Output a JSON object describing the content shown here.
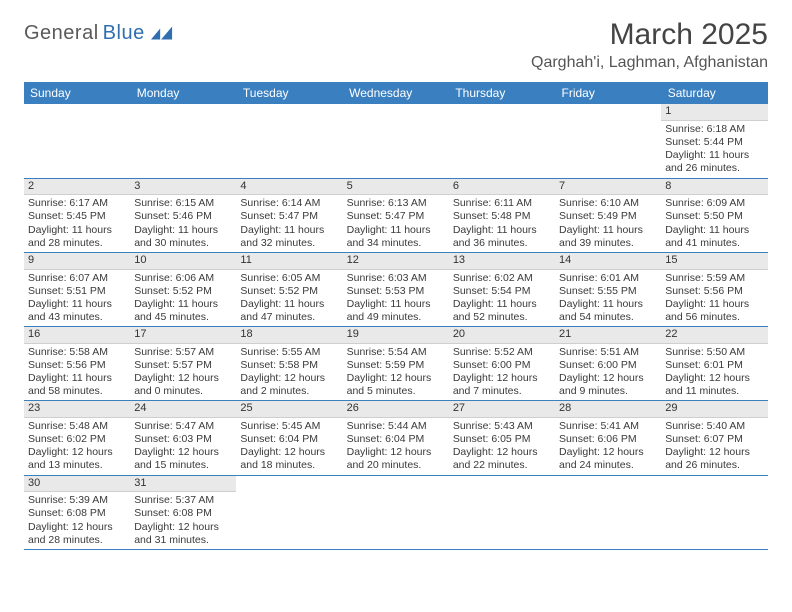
{
  "logo": {
    "text1": "General",
    "text2": "Blue"
  },
  "title": "March 2025",
  "location": "Qarghah'i, Laghman, Afghanistan",
  "colors": {
    "header_bg": "#3a7fc0",
    "header_fg": "#ffffff",
    "daynum_bg": "#e9e9e9",
    "border": "#3a7fc0",
    "logo_blue": "#2f6fb0",
    "logo_gray": "#5a5a5a"
  },
  "weekdays": [
    "Sunday",
    "Monday",
    "Tuesday",
    "Wednesday",
    "Thursday",
    "Friday",
    "Saturday"
  ],
  "weeks": [
    [
      null,
      null,
      null,
      null,
      null,
      null,
      {
        "n": "1",
        "sr": "Sunrise: 6:18 AM",
        "ss": "Sunset: 5:44 PM",
        "dl1": "Daylight: 11 hours",
        "dl2": "and 26 minutes."
      }
    ],
    [
      {
        "n": "2",
        "sr": "Sunrise: 6:17 AM",
        "ss": "Sunset: 5:45 PM",
        "dl1": "Daylight: 11 hours",
        "dl2": "and 28 minutes."
      },
      {
        "n": "3",
        "sr": "Sunrise: 6:15 AM",
        "ss": "Sunset: 5:46 PM",
        "dl1": "Daylight: 11 hours",
        "dl2": "and 30 minutes."
      },
      {
        "n": "4",
        "sr": "Sunrise: 6:14 AM",
        "ss": "Sunset: 5:47 PM",
        "dl1": "Daylight: 11 hours",
        "dl2": "and 32 minutes."
      },
      {
        "n": "5",
        "sr": "Sunrise: 6:13 AM",
        "ss": "Sunset: 5:47 PM",
        "dl1": "Daylight: 11 hours",
        "dl2": "and 34 minutes."
      },
      {
        "n": "6",
        "sr": "Sunrise: 6:11 AM",
        "ss": "Sunset: 5:48 PM",
        "dl1": "Daylight: 11 hours",
        "dl2": "and 36 minutes."
      },
      {
        "n": "7",
        "sr": "Sunrise: 6:10 AM",
        "ss": "Sunset: 5:49 PM",
        "dl1": "Daylight: 11 hours",
        "dl2": "and 39 minutes."
      },
      {
        "n": "8",
        "sr": "Sunrise: 6:09 AM",
        "ss": "Sunset: 5:50 PM",
        "dl1": "Daylight: 11 hours",
        "dl2": "and 41 minutes."
      }
    ],
    [
      {
        "n": "9",
        "sr": "Sunrise: 6:07 AM",
        "ss": "Sunset: 5:51 PM",
        "dl1": "Daylight: 11 hours",
        "dl2": "and 43 minutes."
      },
      {
        "n": "10",
        "sr": "Sunrise: 6:06 AM",
        "ss": "Sunset: 5:52 PM",
        "dl1": "Daylight: 11 hours",
        "dl2": "and 45 minutes."
      },
      {
        "n": "11",
        "sr": "Sunrise: 6:05 AM",
        "ss": "Sunset: 5:52 PM",
        "dl1": "Daylight: 11 hours",
        "dl2": "and 47 minutes."
      },
      {
        "n": "12",
        "sr": "Sunrise: 6:03 AM",
        "ss": "Sunset: 5:53 PM",
        "dl1": "Daylight: 11 hours",
        "dl2": "and 49 minutes."
      },
      {
        "n": "13",
        "sr": "Sunrise: 6:02 AM",
        "ss": "Sunset: 5:54 PM",
        "dl1": "Daylight: 11 hours",
        "dl2": "and 52 minutes."
      },
      {
        "n": "14",
        "sr": "Sunrise: 6:01 AM",
        "ss": "Sunset: 5:55 PM",
        "dl1": "Daylight: 11 hours",
        "dl2": "and 54 minutes."
      },
      {
        "n": "15",
        "sr": "Sunrise: 5:59 AM",
        "ss": "Sunset: 5:56 PM",
        "dl1": "Daylight: 11 hours",
        "dl2": "and 56 minutes."
      }
    ],
    [
      {
        "n": "16",
        "sr": "Sunrise: 5:58 AM",
        "ss": "Sunset: 5:56 PM",
        "dl1": "Daylight: 11 hours",
        "dl2": "and 58 minutes."
      },
      {
        "n": "17",
        "sr": "Sunrise: 5:57 AM",
        "ss": "Sunset: 5:57 PM",
        "dl1": "Daylight: 12 hours",
        "dl2": "and 0 minutes."
      },
      {
        "n": "18",
        "sr": "Sunrise: 5:55 AM",
        "ss": "Sunset: 5:58 PM",
        "dl1": "Daylight: 12 hours",
        "dl2": "and 2 minutes."
      },
      {
        "n": "19",
        "sr": "Sunrise: 5:54 AM",
        "ss": "Sunset: 5:59 PM",
        "dl1": "Daylight: 12 hours",
        "dl2": "and 5 minutes."
      },
      {
        "n": "20",
        "sr": "Sunrise: 5:52 AM",
        "ss": "Sunset: 6:00 PM",
        "dl1": "Daylight: 12 hours",
        "dl2": "and 7 minutes."
      },
      {
        "n": "21",
        "sr": "Sunrise: 5:51 AM",
        "ss": "Sunset: 6:00 PM",
        "dl1": "Daylight: 12 hours",
        "dl2": "and 9 minutes."
      },
      {
        "n": "22",
        "sr": "Sunrise: 5:50 AM",
        "ss": "Sunset: 6:01 PM",
        "dl1": "Daylight: 12 hours",
        "dl2": "and 11 minutes."
      }
    ],
    [
      {
        "n": "23",
        "sr": "Sunrise: 5:48 AM",
        "ss": "Sunset: 6:02 PM",
        "dl1": "Daylight: 12 hours",
        "dl2": "and 13 minutes."
      },
      {
        "n": "24",
        "sr": "Sunrise: 5:47 AM",
        "ss": "Sunset: 6:03 PM",
        "dl1": "Daylight: 12 hours",
        "dl2": "and 15 minutes."
      },
      {
        "n": "25",
        "sr": "Sunrise: 5:45 AM",
        "ss": "Sunset: 6:04 PM",
        "dl1": "Daylight: 12 hours",
        "dl2": "and 18 minutes."
      },
      {
        "n": "26",
        "sr": "Sunrise: 5:44 AM",
        "ss": "Sunset: 6:04 PM",
        "dl1": "Daylight: 12 hours",
        "dl2": "and 20 minutes."
      },
      {
        "n": "27",
        "sr": "Sunrise: 5:43 AM",
        "ss": "Sunset: 6:05 PM",
        "dl1": "Daylight: 12 hours",
        "dl2": "and 22 minutes."
      },
      {
        "n": "28",
        "sr": "Sunrise: 5:41 AM",
        "ss": "Sunset: 6:06 PM",
        "dl1": "Daylight: 12 hours",
        "dl2": "and 24 minutes."
      },
      {
        "n": "29",
        "sr": "Sunrise: 5:40 AM",
        "ss": "Sunset: 6:07 PM",
        "dl1": "Daylight: 12 hours",
        "dl2": "and 26 minutes."
      }
    ],
    [
      {
        "n": "30",
        "sr": "Sunrise: 5:39 AM",
        "ss": "Sunset: 6:08 PM",
        "dl1": "Daylight: 12 hours",
        "dl2": "and 28 minutes."
      },
      {
        "n": "31",
        "sr": "Sunrise: 5:37 AM",
        "ss": "Sunset: 6:08 PM",
        "dl1": "Daylight: 12 hours",
        "dl2": "and 31 minutes."
      },
      null,
      null,
      null,
      null,
      null
    ]
  ]
}
